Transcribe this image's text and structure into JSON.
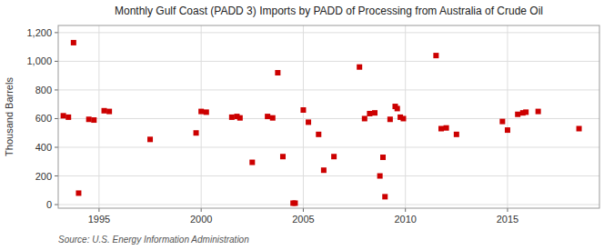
{
  "chart_data": {
    "type": "scatter",
    "title": "Monthly Gulf Coast (PADD 3) Imports by PADD of Processing from Australia of Crude Oil",
    "ylabel": "Thousand Barrels",
    "source": "Source: U.S. Energy Information Administration",
    "color": "#cc0000",
    "marker": "square",
    "grid": true,
    "xlim": [
      1993.0,
      2019.5
    ],
    "ylim": [
      -25,
      1250
    ],
    "xticks": [
      1995,
      2000,
      2005,
      2010,
      2015
    ],
    "yticks": [
      0,
      200,
      400,
      600,
      800,
      {
        "value": 1000,
        "label": "1,000"
      },
      {
        "value": 1200,
        "label": "1,200"
      }
    ],
    "x": [
      1993.25,
      1993.5,
      1993.75,
      1994.0,
      1994.5,
      1994.75,
      1995.25,
      1995.5,
      1997.5,
      1999.75,
      2000.0,
      2000.25,
      2001.5,
      2001.75,
      2001.9,
      2002.5,
      2003.25,
      2003.5,
      2003.75,
      2004.0,
      2004.5,
      2004.6,
      2005.0,
      2005.25,
      2005.75,
      2006.0,
      2006.5,
      2007.75,
      2008.0,
      2008.25,
      2008.5,
      2008.75,
      2008.9,
      2009.0,
      2009.25,
      2009.5,
      2009.6,
      2009.75,
      2009.9,
      2011.5,
      2011.75,
      2012.0,
      2012.5,
      2014.75,
      2015.0,
      2015.5,
      2015.75,
      2015.9,
      2016.5,
      2018.5
    ],
    "values": [
      620,
      610,
      1130,
      80,
      595,
      590,
      655,
      650,
      455,
      500,
      650,
      645,
      610,
      615,
      605,
      295,
      615,
      605,
      920,
      335,
      10,
      10,
      660,
      575,
      490,
      240,
      335,
      960,
      600,
      635,
      640,
      200,
      330,
      55,
      595,
      685,
      670,
      610,
      600,
      1040,
      530,
      535,
      490,
      580,
      520,
      630,
      640,
      645,
      650,
      530
    ]
  }
}
